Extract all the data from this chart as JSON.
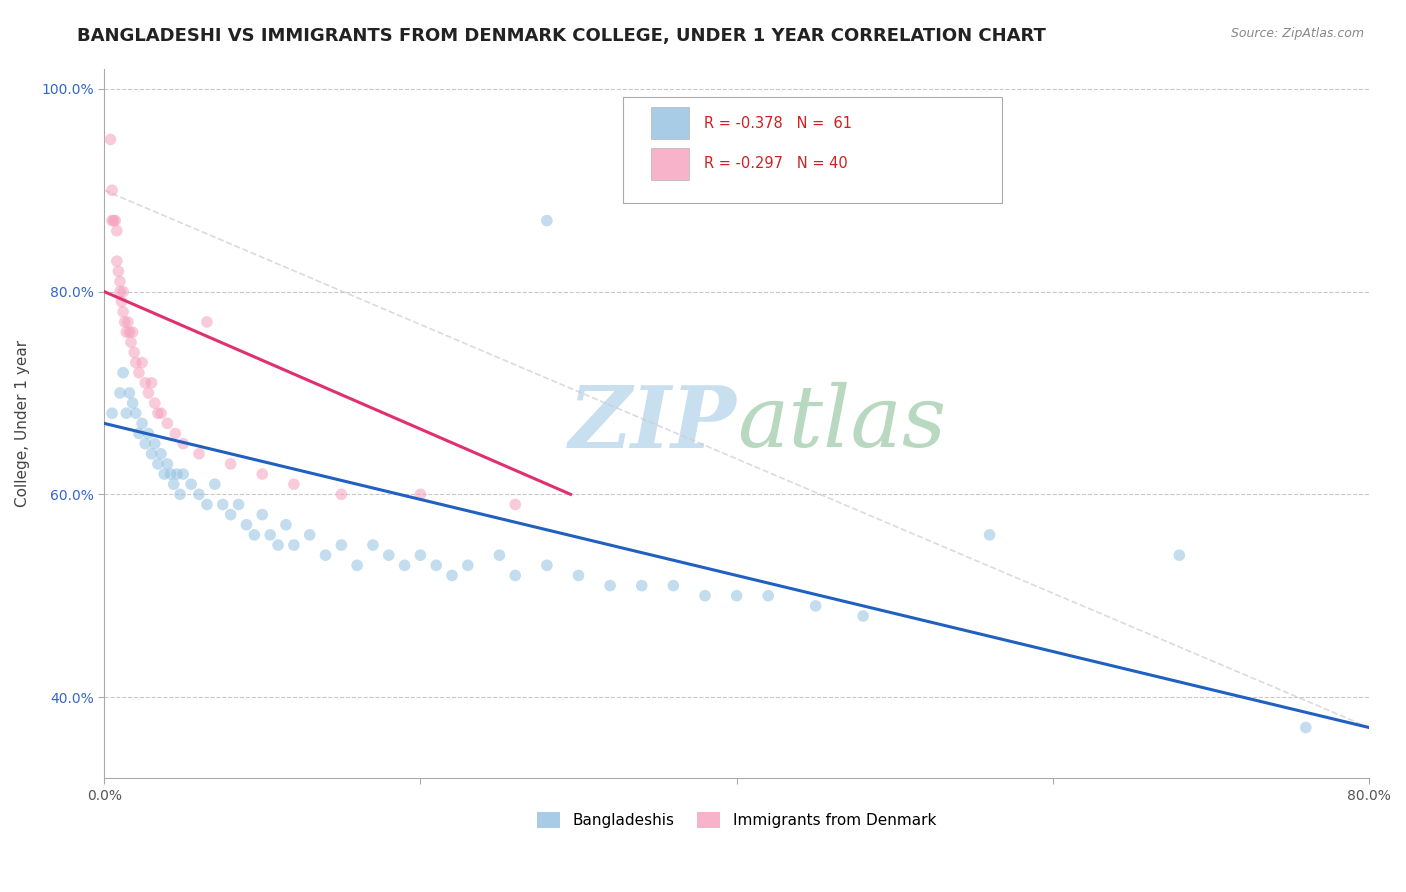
{
  "title": "BANGLADESHI VS IMMIGRANTS FROM DENMARK COLLEGE, UNDER 1 YEAR CORRELATION CHART",
  "source": "Source: ZipAtlas.com",
  "ylabel": "College, Under 1 year",
  "xmin": 0.0,
  "xmax": 0.8,
  "ymin": 0.32,
  "ymax": 1.02,
  "blue_dots": [
    [
      0.005,
      0.68
    ],
    [
      0.01,
      0.7
    ],
    [
      0.012,
      0.72
    ],
    [
      0.014,
      0.68
    ],
    [
      0.016,
      0.7
    ],
    [
      0.018,
      0.69
    ],
    [
      0.02,
      0.68
    ],
    [
      0.022,
      0.66
    ],
    [
      0.024,
      0.67
    ],
    [
      0.026,
      0.65
    ],
    [
      0.028,
      0.66
    ],
    [
      0.03,
      0.64
    ],
    [
      0.032,
      0.65
    ],
    [
      0.034,
      0.63
    ],
    [
      0.036,
      0.64
    ],
    [
      0.038,
      0.62
    ],
    [
      0.04,
      0.63
    ],
    [
      0.042,
      0.62
    ],
    [
      0.044,
      0.61
    ],
    [
      0.046,
      0.62
    ],
    [
      0.048,
      0.6
    ],
    [
      0.05,
      0.62
    ],
    [
      0.055,
      0.61
    ],
    [
      0.06,
      0.6
    ],
    [
      0.065,
      0.59
    ],
    [
      0.07,
      0.61
    ],
    [
      0.075,
      0.59
    ],
    [
      0.08,
      0.58
    ],
    [
      0.085,
      0.59
    ],
    [
      0.09,
      0.57
    ],
    [
      0.095,
      0.56
    ],
    [
      0.1,
      0.58
    ],
    [
      0.105,
      0.56
    ],
    [
      0.11,
      0.55
    ],
    [
      0.115,
      0.57
    ],
    [
      0.12,
      0.55
    ],
    [
      0.13,
      0.56
    ],
    [
      0.14,
      0.54
    ],
    [
      0.15,
      0.55
    ],
    [
      0.16,
      0.53
    ],
    [
      0.17,
      0.55
    ],
    [
      0.18,
      0.54
    ],
    [
      0.19,
      0.53
    ],
    [
      0.2,
      0.54
    ],
    [
      0.21,
      0.53
    ],
    [
      0.22,
      0.52
    ],
    [
      0.23,
      0.53
    ],
    [
      0.25,
      0.54
    ],
    [
      0.26,
      0.52
    ],
    [
      0.28,
      0.53
    ],
    [
      0.3,
      0.52
    ],
    [
      0.32,
      0.51
    ],
    [
      0.34,
      0.51
    ],
    [
      0.36,
      0.51
    ],
    [
      0.38,
      0.5
    ],
    [
      0.4,
      0.5
    ],
    [
      0.42,
      0.5
    ],
    [
      0.45,
      0.49
    ],
    [
      0.48,
      0.48
    ],
    [
      0.28,
      0.87
    ],
    [
      0.56,
      0.56
    ],
    [
      0.68,
      0.54
    ],
    [
      0.76,
      0.37
    ]
  ],
  "pink_dots": [
    [
      0.004,
      0.95
    ],
    [
      0.005,
      0.9
    ],
    [
      0.005,
      0.87
    ],
    [
      0.006,
      0.87
    ],
    [
      0.007,
      0.87
    ],
    [
      0.008,
      0.86
    ],
    [
      0.008,
      0.83
    ],
    [
      0.009,
      0.82
    ],
    [
      0.01,
      0.81
    ],
    [
      0.01,
      0.8
    ],
    [
      0.011,
      0.79
    ],
    [
      0.012,
      0.8
    ],
    [
      0.012,
      0.78
    ],
    [
      0.013,
      0.77
    ],
    [
      0.014,
      0.76
    ],
    [
      0.015,
      0.77
    ],
    [
      0.016,
      0.76
    ],
    [
      0.017,
      0.75
    ],
    [
      0.018,
      0.76
    ],
    [
      0.019,
      0.74
    ],
    [
      0.02,
      0.73
    ],
    [
      0.022,
      0.72
    ],
    [
      0.024,
      0.73
    ],
    [
      0.026,
      0.71
    ],
    [
      0.028,
      0.7
    ],
    [
      0.03,
      0.71
    ],
    [
      0.032,
      0.69
    ],
    [
      0.034,
      0.68
    ],
    [
      0.036,
      0.68
    ],
    [
      0.04,
      0.67
    ],
    [
      0.045,
      0.66
    ],
    [
      0.05,
      0.65
    ],
    [
      0.06,
      0.64
    ],
    [
      0.065,
      0.77
    ],
    [
      0.08,
      0.63
    ],
    [
      0.1,
      0.62
    ],
    [
      0.12,
      0.61
    ],
    [
      0.15,
      0.6
    ],
    [
      0.2,
      0.6
    ],
    [
      0.26,
      0.59
    ]
  ],
  "blue_line_x": [
    0.0,
    0.8
  ],
  "blue_line_y": [
    0.67,
    0.37
  ],
  "pink_line_x": [
    0.0,
    0.295
  ],
  "pink_line_y": [
    0.8,
    0.6
  ],
  "ref_line_x": [
    0.0,
    0.8
  ],
  "ref_line_y": [
    0.9,
    0.37
  ],
  "blue_color": "#92c0e0",
  "pink_color": "#f4a0bc",
  "blue_line_color": "#2060c0",
  "pink_line_color": "#e03070",
  "ref_line_color": "#cccccc",
  "scatter_alpha": 0.55,
  "scatter_size": 70,
  "background_color": "#ffffff",
  "grid_color": "#bbbbbb",
  "title_fontsize": 13,
  "axis_label_fontsize": 11,
  "tick_fontsize": 10,
  "source_fontsize": 9,
  "y_ticks": [
    0.4,
    0.6,
    0.8,
    1.0
  ],
  "y_tick_labels": [
    "40.0%",
    "60.0%",
    "80.0%",
    "100.0%"
  ],
  "x_ticks": [
    0.0,
    0.2,
    0.4,
    0.6,
    0.8
  ],
  "x_tick_labels": [
    "0.0%",
    "",
    "",
    "",
    "80.0%"
  ]
}
